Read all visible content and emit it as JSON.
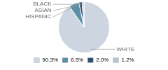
{
  "chart_data": {
    "type": "pie",
    "categories": [
      "WHITE",
      "HISPANIC",
      "ASIAN",
      "BLACK"
    ],
    "values": [
      90.3,
      6.5,
      2.0,
      1.2
    ],
    "value_labels": [
      "90.3%",
      "6.5%",
      "2.0%",
      "1.2%"
    ],
    "colors": [
      "#cdd5e0",
      "#5b8fa8",
      "#2e4f6e",
      "#b8c4d0"
    ],
    "legend": "bottom"
  }
}
